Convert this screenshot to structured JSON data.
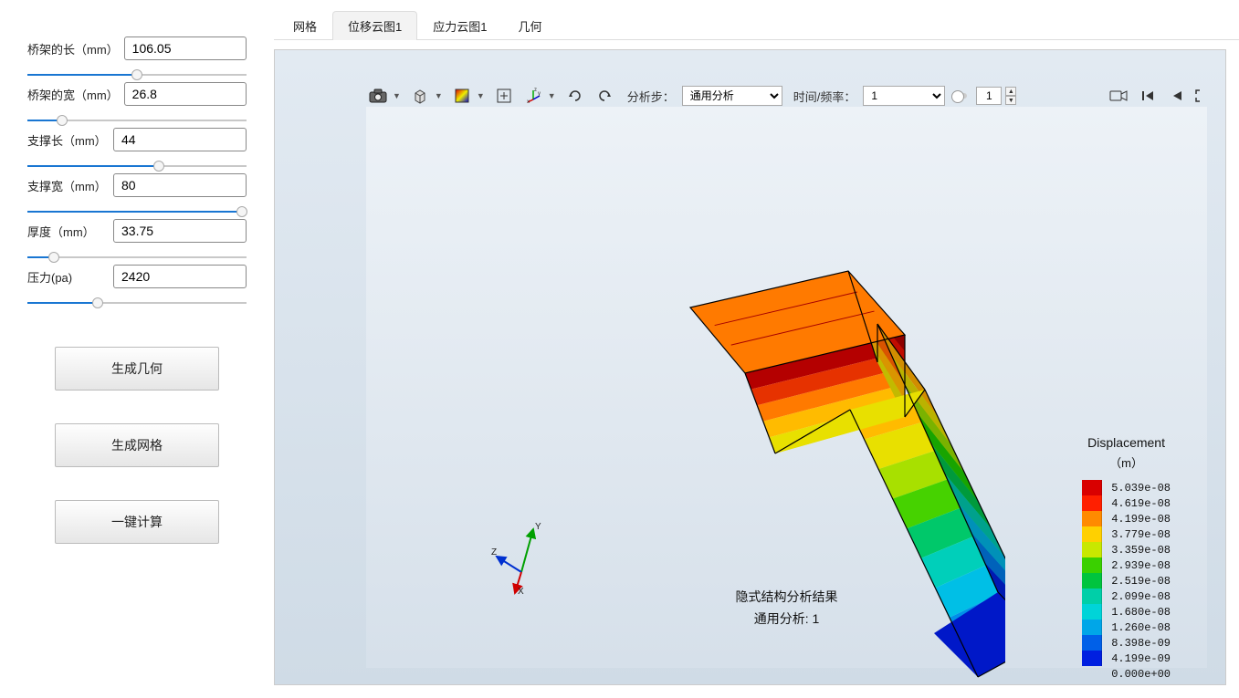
{
  "sidebar": {
    "params": [
      {
        "label": "桥架的长（mm）",
        "value": "106.05",
        "fill_pct": 50
      },
      {
        "label": "桥架的宽（mm）",
        "value": "26.8",
        "fill_pct": 16
      },
      {
        "label": "支撑长（mm）",
        "value": "44",
        "fill_pct": 60
      },
      {
        "label": "支撑宽（mm）",
        "value": "80",
        "fill_pct": 98
      },
      {
        "label": "厚度（mm）",
        "value": "33.75",
        "fill_pct": 12
      },
      {
        "label": "压力(pa)",
        "value": "2420",
        "fill_pct": 32
      }
    ],
    "buttons": {
      "gen_geometry": "生成几何",
      "gen_mesh": "生成网格",
      "one_click": "一键计算"
    }
  },
  "tabs": [
    {
      "label": "网格",
      "active": false
    },
    {
      "label": "位移云图1",
      "active": true
    },
    {
      "label": "应力云图1",
      "active": false
    },
    {
      "label": "几何",
      "active": false
    }
  ],
  "toolbar": {
    "analysis_step_label": "分析步：",
    "analysis_step_value": "通用分析",
    "time_freq_label": "时间/频率：",
    "time_freq_value": "1",
    "frame_value": "1"
  },
  "legend": {
    "title": "Displacement",
    "unit": "（m）",
    "entries": [
      {
        "value": "5.039e-08",
        "color": "#d90000"
      },
      {
        "value": "4.619e-08",
        "color": "#ff1f00"
      },
      {
        "value": "4.199e-08",
        "color": "#ff8a00"
      },
      {
        "value": "3.779e-08",
        "color": "#ffd000"
      },
      {
        "value": "3.359e-08",
        "color": "#c8e800"
      },
      {
        "value": "2.939e-08",
        "color": "#3ad000"
      },
      {
        "value": "2.519e-08",
        "color": "#00c43e"
      },
      {
        "value": "2.099e-08",
        "color": "#00cfa8"
      },
      {
        "value": "1.680e-08",
        "color": "#00d4d8"
      },
      {
        "value": "1.260e-08",
        "color": "#00a6e8"
      },
      {
        "value": "8.398e-09",
        "color": "#0060e8"
      },
      {
        "value": "4.199e-09",
        "color": "#001fe0"
      }
    ],
    "last_value": "0.000e+00"
  },
  "caption": {
    "line1": "隐式结构分析结果",
    "line2": "通用分析: 1"
  },
  "model": {
    "band_colors": [
      "#b40000",
      "#e63200",
      "#ff7a00",
      "#ffbb00",
      "#e8e000",
      "#a8e000",
      "#46d200",
      "#00c86a",
      "#00cfba",
      "#00bfe6",
      "#0090e8",
      "#0048e0",
      "#0018c8"
    ],
    "edge_color": "#000000"
  }
}
